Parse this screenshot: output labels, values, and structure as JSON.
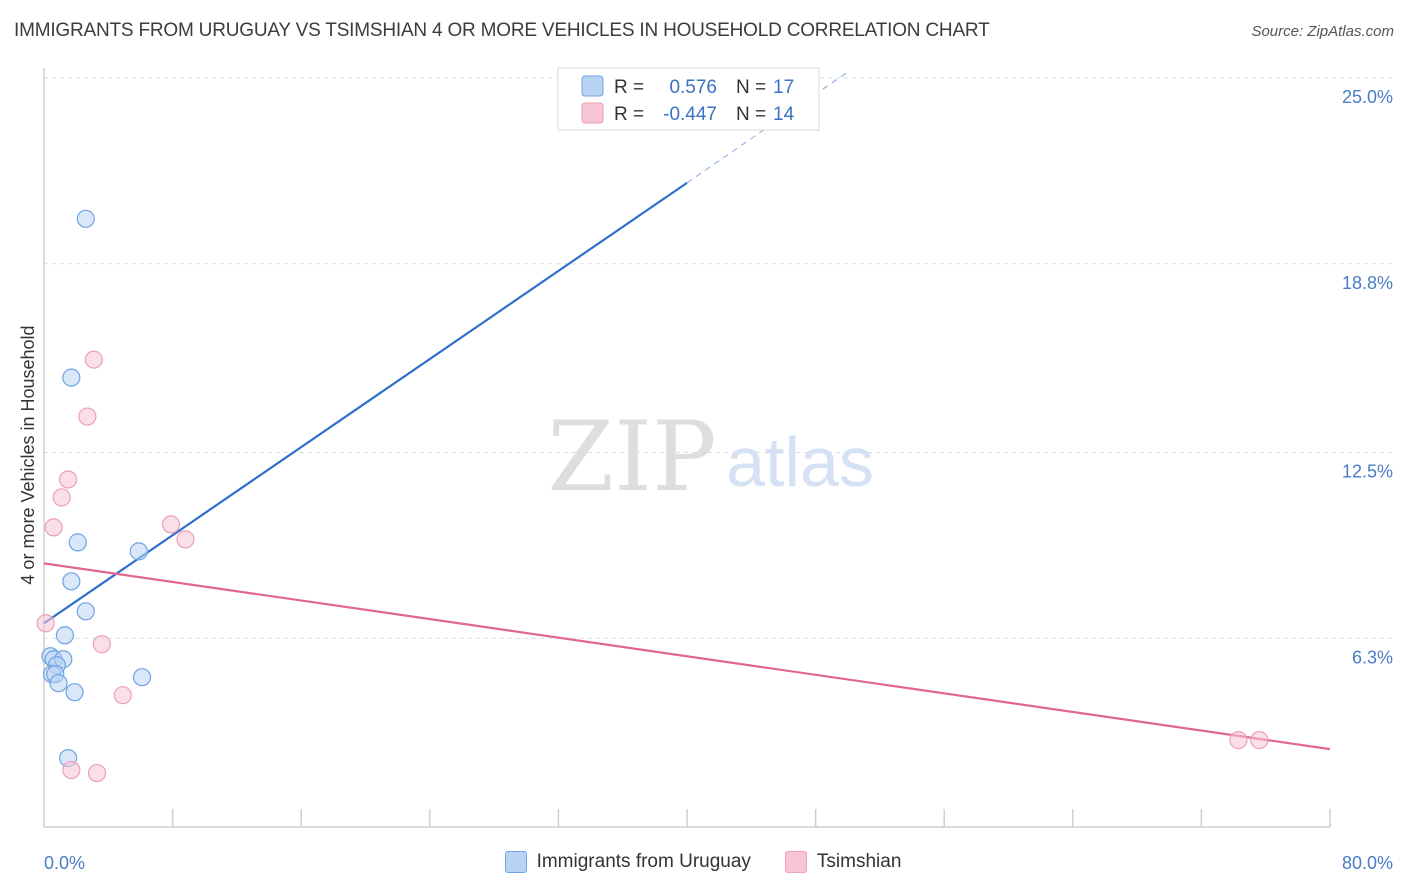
{
  "title": "IMMIGRANTS FROM URUGUAY VS TSIMSHIAN 4 OR MORE VEHICLES IN HOUSEHOLD CORRELATION CHART",
  "source": "Source: ZipAtlas.com",
  "watermark": {
    "zip": "ZIP",
    "atlas": "atlas"
  },
  "chart_data": {
    "type": "scatter",
    "xlabel": "",
    "ylabel": "4 or more Vehicles in Household",
    "xlim": [
      0,
      80
    ],
    "ylim": [
      0,
      25.0
    ],
    "x_tick_labels": [
      "0.0%",
      "80.0%"
    ],
    "y_ticks": [
      6.3,
      12.5,
      18.8,
      25.0
    ],
    "y_tick_labels": [
      "6.3%",
      "12.5%",
      "18.8%",
      "25.0%"
    ],
    "series": [
      {
        "name": "Immigrants from Uruguay",
        "color": "#6fa3e6",
        "fill": "#b9d3f3",
        "line_color": "#2e6fcc",
        "R": "0.576",
        "N": "17",
        "points": [
          {
            "x": 2.6,
            "y": 20.3
          },
          {
            "x": 1.7,
            "y": 15.0
          },
          {
            "x": 2.1,
            "y": 9.5
          },
          {
            "x": 5.9,
            "y": 9.2
          },
          {
            "x": 1.7,
            "y": 8.2
          },
          {
            "x": 2.6,
            "y": 7.2
          },
          {
            "x": 1.3,
            "y": 6.4
          },
          {
            "x": 0.4,
            "y": 5.7
          },
          {
            "x": 0.6,
            "y": 5.6
          },
          {
            "x": 1.2,
            "y": 5.6
          },
          {
            "x": 0.8,
            "y": 5.4
          },
          {
            "x": 0.5,
            "y": 5.1
          },
          {
            "x": 0.7,
            "y": 5.1
          },
          {
            "x": 6.1,
            "y": 5.0
          },
          {
            "x": 0.9,
            "y": 4.8
          },
          {
            "x": 1.9,
            "y": 4.5
          },
          {
            "x": 1.5,
            "y": 2.3
          }
        ],
        "trend": {
          "x": [
            0,
            40
          ],
          "y": [
            6.8,
            21.5
          ],
          "dashed_to": {
            "x": 50,
            "y": 25.2
          }
        }
      },
      {
        "name": "Tsimshian",
        "color": "#ec9fb6",
        "fill": "#f7c5d4",
        "line_color": "#e06794",
        "R": "-0.447",
        "N": "14",
        "points": [
          {
            "x": 3.1,
            "y": 15.6
          },
          {
            "x": 2.7,
            "y": 13.7
          },
          {
            "x": 1.5,
            "y": 11.6
          },
          {
            "x": 1.1,
            "y": 11.0
          },
          {
            "x": 0.6,
            "y": 10.0
          },
          {
            "x": 7.9,
            "y": 10.1
          },
          {
            "x": 8.8,
            "y": 9.6
          },
          {
            "x": 0.1,
            "y": 6.8
          },
          {
            "x": 3.6,
            "y": 6.1
          },
          {
            "x": 4.9,
            "y": 4.4
          },
          {
            "x": 74.3,
            "y": 2.9
          },
          {
            "x": 75.6,
            "y": 2.9
          },
          {
            "x": 1.7,
            "y": 1.9
          },
          {
            "x": 3.3,
            "y": 1.8
          }
        ],
        "trend": {
          "x": [
            0,
            80
          ],
          "y": [
            8.8,
            2.6
          ]
        }
      }
    ]
  },
  "legend": {
    "r_label": "R =",
    "n_label": "N ="
  },
  "bottom_legend": [
    "Immigrants from Uruguay",
    "Tsimshian"
  ]
}
